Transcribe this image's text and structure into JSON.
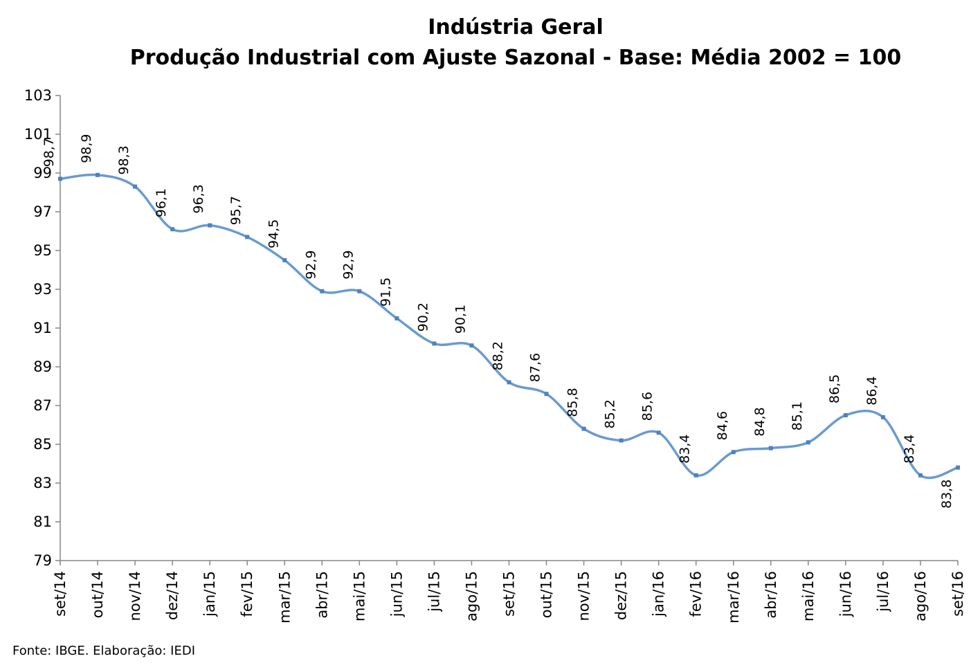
{
  "chart_data": {
    "type": "line",
    "title": "Indústria Geral",
    "subtitle": "Produção Industrial com Ajuste Sazonal - Base: Média 2002 = 100",
    "xlabel": "",
    "ylabel": "",
    "ylim": [
      79,
      103
    ],
    "yticks": [
      79,
      81,
      83,
      85,
      87,
      89,
      91,
      93,
      95,
      97,
      99,
      101,
      103
    ],
    "grid": false,
    "legend": "none",
    "line_color": "#6a9ad0",
    "categories": [
      "set/14",
      "out/14",
      "nov/14",
      "dez/14",
      "jan/15",
      "fev/15",
      "mar/15",
      "abr/15",
      "mai/15",
      "jun/15",
      "jul/15",
      "ago/15",
      "set/15",
      "out/15",
      "nov/15",
      "dez/15",
      "jan/16",
      "fev/16",
      "mar/16",
      "abr/16",
      "mai/16",
      "jun/16",
      "jul/16",
      "ago/16",
      "set/16"
    ],
    "values": [
      98.7,
      98.9,
      98.3,
      96.1,
      96.3,
      95.7,
      94.5,
      92.9,
      92.9,
      91.5,
      90.2,
      90.1,
      88.2,
      87.6,
      85.8,
      85.2,
      85.6,
      83.4,
      84.6,
      84.8,
      85.1,
      86.5,
      86.4,
      83.4,
      83.8
    ],
    "data_labels": [
      "98,7",
      "98,9",
      "98,3",
      "96,1",
      "96,3",
      "95,7",
      "94,5",
      "92,9",
      "92,9",
      "91,5",
      "90,2",
      "90,1",
      "88,2",
      "87,6",
      "85,8",
      "85,2",
      "85,6",
      "83,4",
      "84,6",
      "84,8",
      "85,1",
      "86,5",
      "86,4",
      "83,4",
      "83,8"
    ]
  },
  "source": "Fonte: IBGE. Elaboração: IEDI"
}
